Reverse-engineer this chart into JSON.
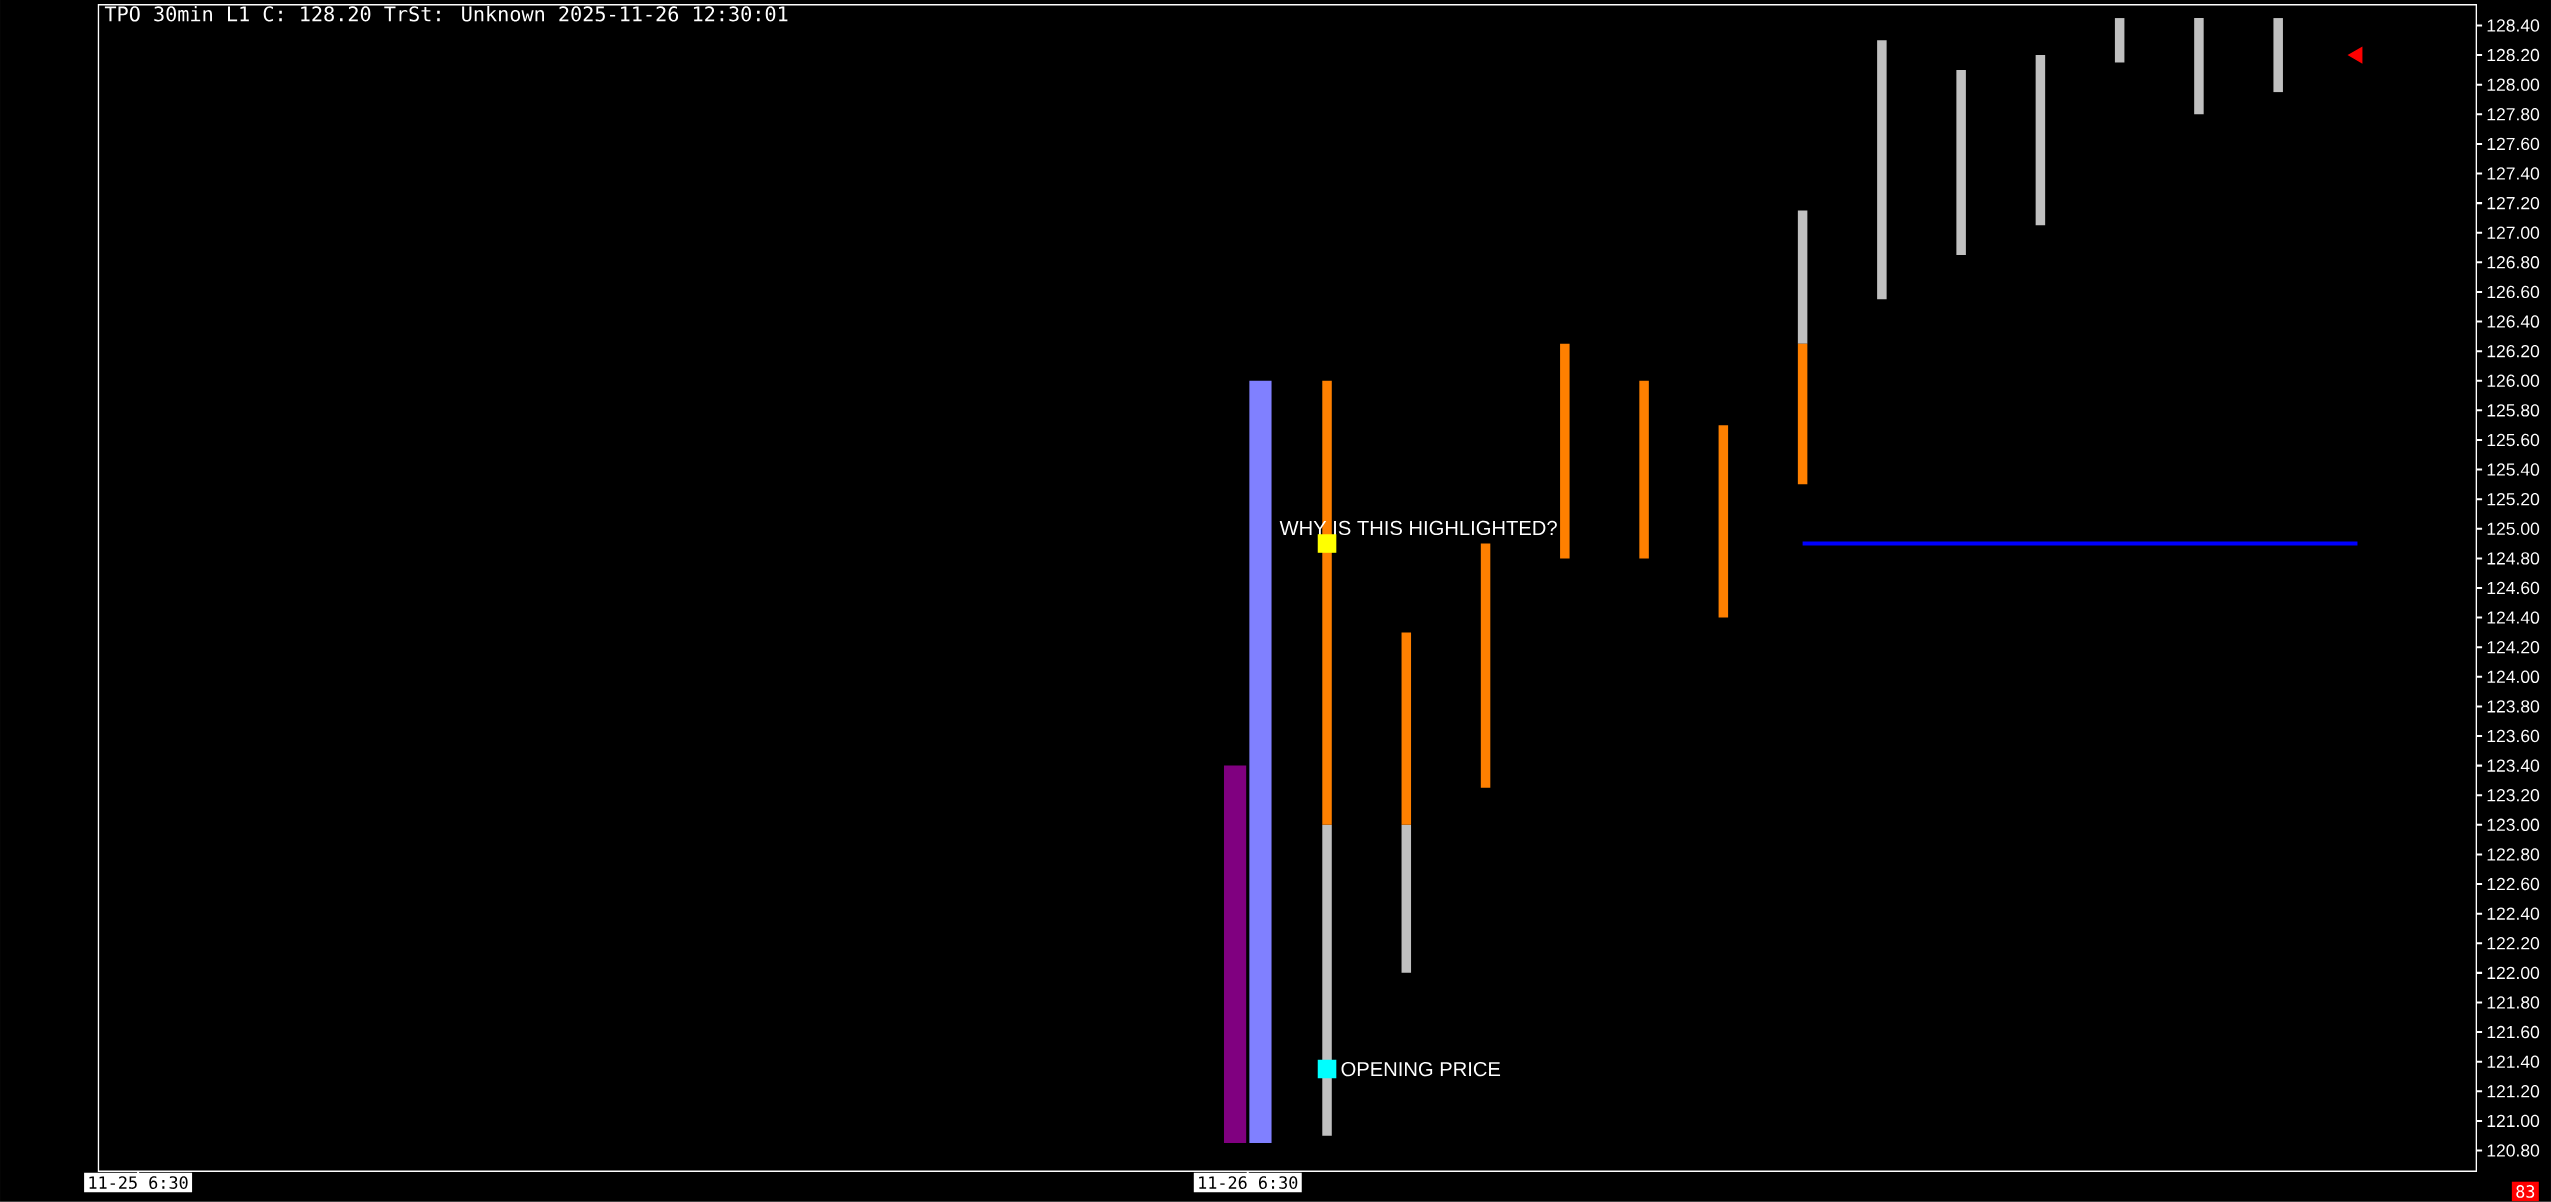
{
  "chart_data": {
    "type": "bar",
    "title": "TPO 30min L1 C: 128.20 TrSt: Unknown 2025-11-26 12:30:01",
    "categories": [
      "11-25 6:30",
      null,
      null,
      null,
      null,
      null,
      null,
      null,
      null,
      null,
      null,
      null,
      null,
      null,
      "11-26 6:30",
      null,
      null,
      null,
      null,
      null,
      null,
      null,
      null,
      null,
      null,
      null,
      null,
      null,
      null,
      null
    ],
    "ylim": [
      120.66,
      128.54
    ],
    "yticks": [
      {
        "value": 120.8,
        "label": "120.80"
      },
      {
        "value": 121.0,
        "label": "121.00"
      },
      {
        "value": 121.2,
        "label": "121.20"
      },
      {
        "value": 121.4,
        "label": "121.40"
      },
      {
        "value": 121.6,
        "label": "121.60"
      },
      {
        "value": 121.8,
        "label": "121.80"
      },
      {
        "value": 122.0,
        "label": "122.00"
      },
      {
        "value": 122.2,
        "label": "122.20"
      },
      {
        "value": 122.4,
        "label": "122.40"
      },
      {
        "value": 122.6,
        "label": "122.60"
      },
      {
        "value": 122.8,
        "label": "122.80"
      },
      {
        "value": 123.0,
        "label": "123.00"
      },
      {
        "value": 123.2,
        "label": "123.20"
      },
      {
        "value": 123.4,
        "label": "123.40"
      },
      {
        "value": 123.6,
        "label": "123.60"
      },
      {
        "value": 123.8,
        "label": "123.80"
      },
      {
        "value": 124.0,
        "label": "124.00"
      },
      {
        "value": 124.2,
        "label": "124.20"
      },
      {
        "value": 124.4,
        "label": "124.40"
      },
      {
        "value": 124.6,
        "label": "124.60"
      },
      {
        "value": 124.8,
        "label": "124.80"
      },
      {
        "value": 125.0,
        "label": "125.00"
      },
      {
        "value": 125.2,
        "label": "125.20"
      },
      {
        "value": 125.4,
        "label": "125.40"
      },
      {
        "value": 125.6,
        "label": "125.60"
      },
      {
        "value": 125.8,
        "label": "125.80"
      },
      {
        "value": 126.0,
        "label": "126.00"
      },
      {
        "value": 126.2,
        "label": "126.20"
      },
      {
        "value": 126.4,
        "label": "126.40"
      },
      {
        "value": 126.6,
        "label": "126.60"
      },
      {
        "value": 126.8,
        "label": "126.80"
      },
      {
        "value": 127.0,
        "label": "127.00"
      },
      {
        "value": 127.2,
        "label": "127.20"
      },
      {
        "value": 127.4,
        "label": "127.40"
      },
      {
        "value": 127.6,
        "label": "127.60"
      },
      {
        "value": 127.8,
        "label": "127.80"
      },
      {
        "value": 128.0,
        "label": "128.00"
      },
      {
        "value": 128.2,
        "label": "128.20"
      },
      {
        "value": 128.4,
        "label": "128.40"
      }
    ],
    "series": [
      {
        "color": "#800080",
        "base": [
          null,
          null,
          null,
          null,
          null,
          null,
          null,
          null,
          null,
          null,
          null,
          null,
          null,
          null,
          120.85,
          null,
          null,
          null,
          null,
          null,
          null,
          null,
          null,
          null,
          null,
          null,
          null,
          null,
          null,
          null
        ],
        "values": [
          null,
          null,
          null,
          null,
          null,
          null,
          null,
          null,
          null,
          null,
          null,
          null,
          null,
          null,
          2.55,
          null,
          null,
          null,
          null,
          null,
          null,
          null,
          null,
          null,
          null,
          null,
          null,
          null,
          null,
          null
        ]
      },
      {
        "color": "#8080ff",
        "base": [
          null,
          null,
          null,
          null,
          null,
          null,
          null,
          null,
          null,
          null,
          null,
          null,
          null,
          null,
          120.85,
          null,
          null,
          null,
          null,
          null,
          null,
          null,
          null,
          null,
          null,
          null,
          null,
          null,
          null,
          null
        ],
        "values": [
          null,
          null,
          null,
          null,
          null,
          null,
          null,
          null,
          null,
          null,
          null,
          null,
          null,
          null,
          5.15,
          null,
          null,
          null,
          null,
          null,
          null,
          null,
          null,
          null,
          null,
          null,
          null,
          null,
          null,
          null
        ]
      },
      {
        "color": "#c0c0c0",
        "base": [
          null,
          null,
          null,
          null,
          null,
          null,
          null,
          null,
          null,
          null,
          null,
          null,
          null,
          null,
          null,
          120.9,
          122.0,
          null,
          null,
          null,
          null,
          126.25,
          126.55,
          126.85,
          127.05,
          128.15,
          127.8,
          127.95,
          null,
          null
        ],
        "values": [
          null,
          null,
          null,
          null,
          null,
          null,
          null,
          null,
          null,
          null,
          null,
          null,
          null,
          null,
          null,
          2.1,
          1.0,
          null,
          null,
          null,
          null,
          0.9,
          1.75,
          1.25,
          1.15,
          0.3,
          0.65,
          0.5,
          null,
          null
        ]
      },
      {
        "color": "#ff8000",
        "base": [
          null,
          null,
          null,
          null,
          null,
          null,
          null,
          null,
          null,
          null,
          null,
          null,
          null,
          null,
          null,
          123.0,
          123.0,
          123.25,
          124.8,
          124.8,
          124.4,
          125.3,
          null,
          null,
          null,
          null,
          null,
          null,
          null,
          null
        ],
        "values": [
          null,
          null,
          null,
          null,
          null,
          null,
          null,
          null,
          null,
          null,
          null,
          null,
          null,
          null,
          null,
          3.0,
          1.3,
          1.65,
          1.45,
          1.2,
          1.3,
          0.95,
          null,
          null,
          null,
          null,
          null,
          null,
          null,
          null
        ]
      },
      {
        "type": "line",
        "color": "#0000ff",
        "values": [
          null,
          null,
          null,
          null,
          null,
          null,
          null,
          null,
          null,
          null,
          null,
          null,
          null,
          null,
          null,
          null,
          null,
          null,
          null,
          null,
          null,
          124.9,
          null,
          null,
          null,
          null,
          null,
          null,
          124.9,
          null
        ]
      },
      {
        "type": "scatter",
        "marker": "square",
        "color": "#ffff00",
        "values": [
          null,
          null,
          null,
          null,
          null,
          null,
          null,
          null,
          null,
          null,
          null,
          null,
          null,
          null,
          null,
          124.9,
          null,
          null,
          null,
          null,
          null,
          null,
          null,
          null,
          null,
          null,
          null,
          null,
          null,
          null
        ]
      },
      {
        "type": "scatter",
        "marker": "square",
        "color": "#00ffff",
        "values": [
          null,
          null,
          null,
          null,
          null,
          null,
          null,
          null,
          null,
          null,
          null,
          null,
          null,
          null,
          null,
          121.35,
          null,
          null,
          null,
          null,
          null,
          null,
          null,
          null,
          null,
          null,
          null,
          null,
          null,
          null
        ]
      },
      {
        "type": "scatter",
        "marker": "triangle",
        "color": "#ff0000",
        "values": [
          null,
          null,
          null,
          null,
          null,
          null,
          null,
          null,
          null,
          null,
          null,
          null,
          null,
          null,
          null,
          null,
          null,
          null,
          null,
          null,
          null,
          null,
          null,
          null,
          null,
          null,
          null,
          null,
          128.2,
          null
        ]
      }
    ],
    "annotations": [
      "WHY IS THIS HIGHLIGHTED?",
      "OPENING PRICE",
      "83"
    ]
  }
}
